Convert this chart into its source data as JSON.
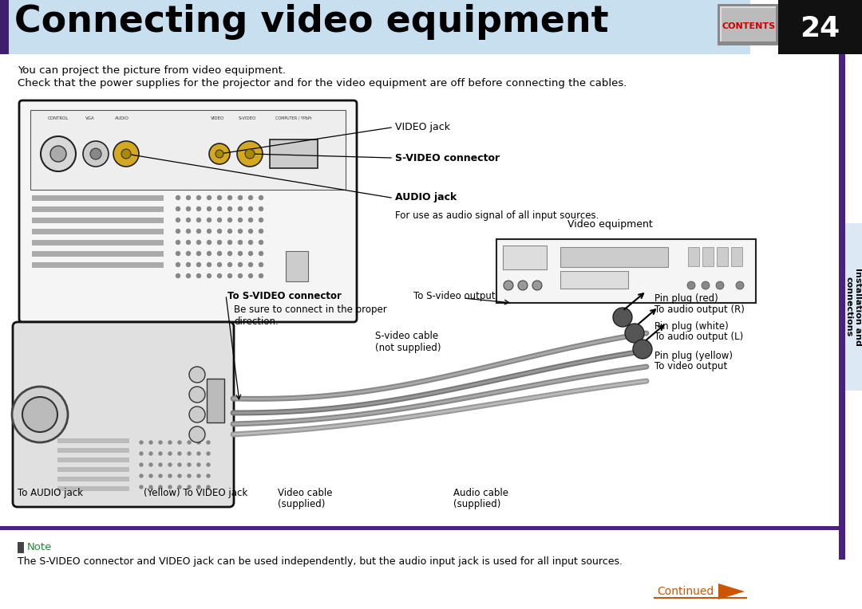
{
  "bg_color": "#ffffff",
  "header_bg": "#c8dff0",
  "header_title": "Connecting video equipment",
  "header_title_color": "#000000",
  "header_left_bar_color": "#3d1f6e",
  "contents_btn_bg": "#aaaaaa",
  "contents_btn_text": "CONTENTS",
  "contents_btn_text_color": "#cc0000",
  "page_number": "24",
  "page_number_bg": "#111111",
  "page_number_color": "#ffffff",
  "right_bar_color": "#4a2080",
  "side_tab_bg": "#dce9f5",
  "side_tab_text": "Installation and\nconnections",
  "side_tab_text_color": "#000000",
  "body_line1": "You can project the picture from video equipment.",
  "body_line2": "Check that the power supplies for the projector and for the video equipment are off before connecting the cables.",
  "body_text_color": "#000000",
  "note_label": "Note",
  "note_label_color": "#228833",
  "note_text": "The S-VIDEO connector and VIDEO jack can be used independently, but the audio input jack is used for all input sources.",
  "note_text_color": "#000000",
  "continued_text": "Continued",
  "continued_color": "#cc5500"
}
